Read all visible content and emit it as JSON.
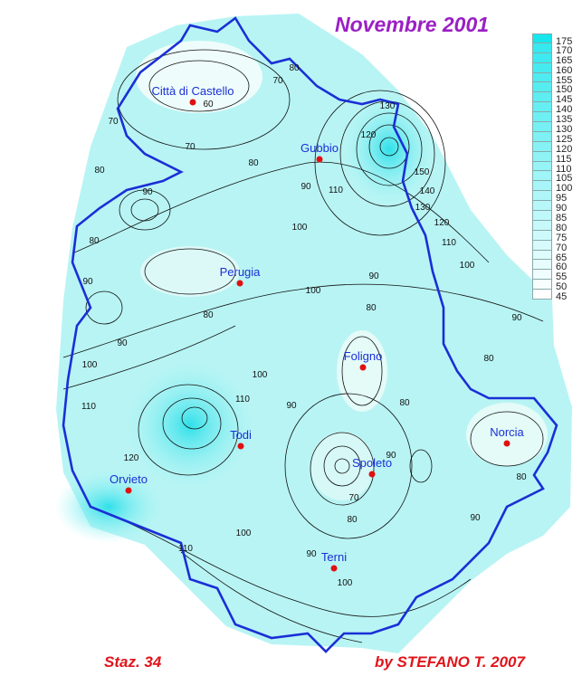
{
  "title": "Novembre 2001",
  "footer": {
    "stations": "Staz. 34",
    "author": "by STEFANO T. 2007"
  },
  "colors": {
    "title": "#9b1fc4",
    "footer": "#e0141a",
    "border": "#1a2fd6",
    "city_dot": "#e01010",
    "city_label": "#1a2fd6",
    "fill_low": "#f4fffd",
    "fill_high": "#17e6ec"
  },
  "legend": {
    "values": [
      175,
      170,
      165,
      160,
      155,
      150,
      145,
      140,
      135,
      130,
      125,
      120,
      115,
      110,
      105,
      100,
      95,
      90,
      85,
      80,
      75,
      70,
      65,
      60,
      55,
      50,
      45
    ]
  },
  "cities": [
    {
      "name": "Città di Castello"
    },
    {
      "name": "Gubbio"
    },
    {
      "name": "Perugia"
    },
    {
      "name": "Foligno"
    },
    {
      "name": "Todi"
    },
    {
      "name": "Norcia"
    },
    {
      "name": "Orvieto"
    },
    {
      "name": "Spoleto"
    },
    {
      "name": "Terni"
    }
  ],
  "contour_labels": [
    "60",
    "70",
    "80",
    "70",
    "70",
    "80",
    "80",
    "90",
    "90",
    "110",
    "130",
    "120",
    "150",
    "140",
    "130",
    "120",
    "110",
    "100",
    "100",
    "80",
    "90",
    "90",
    "80",
    "100",
    "90",
    "80",
    "90",
    "100",
    "80",
    "100",
    "110",
    "90",
    "110",
    "80",
    "120",
    "90",
    "80",
    "70",
    "80",
    "90",
    "110",
    "100",
    "90",
    "100"
  ]
}
